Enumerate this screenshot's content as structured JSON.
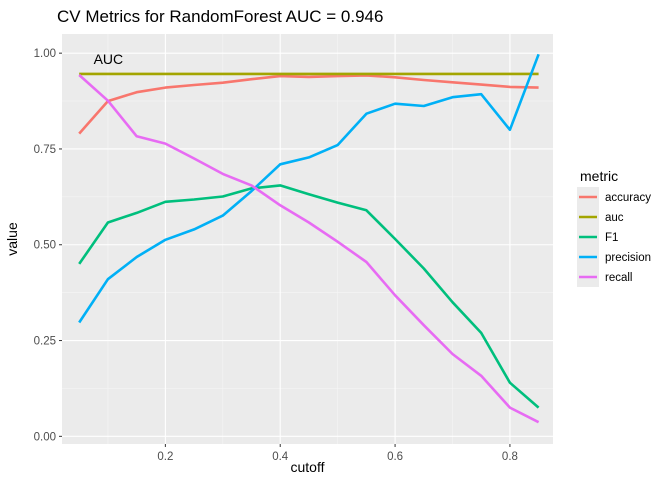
{
  "chart_data": {
    "type": "line",
    "title": "CV Metrics for RandomForest AUC = 0.946",
    "xlabel": "cutoff",
    "ylabel": "value",
    "xlim": [
      0.02,
      0.875
    ],
    "ylim": [
      -0.02,
      1.05
    ],
    "x_ticks": [
      0.2,
      0.4,
      0.6,
      0.8
    ],
    "x_tick_labels": [
      "0.2",
      "0.4",
      "0.6",
      "0.8"
    ],
    "y_ticks": [
      0,
      0.25,
      0.5,
      0.75,
      1.0
    ],
    "y_tick_labels": [
      "0.00",
      "0.25",
      "0.50",
      "0.75",
      "1.00"
    ],
    "grid": true,
    "background": "#ebebeb",
    "legend": {
      "title": "metric",
      "position": "right"
    },
    "annotation": {
      "text": "AUC",
      "x": 0.075,
      "y": 0.972
    },
    "x": [
      0.05,
      0.1,
      0.15,
      0.2,
      0.25,
      0.3,
      0.35,
      0.4,
      0.45,
      0.5,
      0.55,
      0.6,
      0.65,
      0.7,
      0.75,
      0.8,
      0.85
    ],
    "series": [
      {
        "name": "accuracy",
        "color": "#F8766D",
        "values": [
          0.79,
          0.875,
          0.898,
          0.91,
          0.917,
          0.923,
          0.932,
          0.94,
          0.938,
          0.94,
          0.942,
          0.937,
          0.93,
          0.924,
          0.918,
          0.912,
          0.91
        ]
      },
      {
        "name": "auc",
        "color": "#A3A500",
        "values": [
          0.946,
          0.946,
          0.946,
          0.946,
          0.946,
          0.946,
          0.946,
          0.946,
          0.946,
          0.946,
          0.946,
          0.946,
          0.946,
          0.946,
          0.946,
          0.946,
          0.946
        ]
      },
      {
        "name": "F1",
        "color": "#00BF7D",
        "values": [
          0.45,
          0.558,
          0.583,
          0.612,
          0.618,
          0.626,
          0.647,
          0.655,
          0.632,
          0.61,
          0.59,
          0.515,
          0.438,
          0.35,
          0.27,
          0.14,
          0.075
        ]
      },
      {
        "name": "precision",
        "color": "#00B0F6",
        "values": [
          0.297,
          0.41,
          0.468,
          0.513,
          0.54,
          0.576,
          0.64,
          0.71,
          0.728,
          0.76,
          0.842,
          0.868,
          0.862,
          0.885,
          0.893,
          0.8,
          0.997
        ]
      },
      {
        "name": "recall",
        "color": "#E76BF3",
        "values": [
          0.943,
          0.876,
          0.783,
          0.764,
          0.725,
          0.685,
          0.655,
          0.603,
          0.558,
          0.508,
          0.455,
          0.368,
          0.29,
          0.215,
          0.158,
          0.075,
          0.037
        ]
      }
    ]
  }
}
